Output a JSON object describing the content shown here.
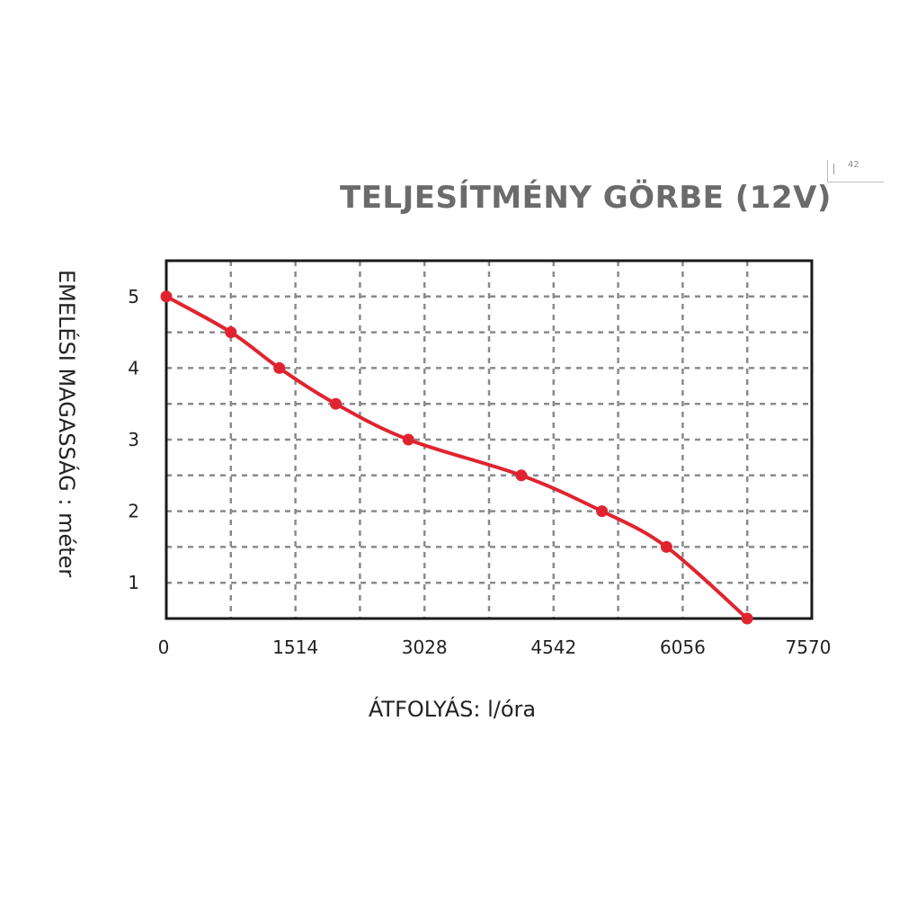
{
  "header": {
    "corner_tag": "42"
  },
  "chart_data": {
    "type": "line",
    "title": "TELJESÍTMÉNY GÖRBE (12V)",
    "xlabel": "ÁTFOLYÁS: l/óra",
    "ylabel": "EMELÉSI MAGASSÁG : méter",
    "x_ticks": [
      "0",
      "1514",
      "3028",
      "4542",
      "6056",
      "7570"
    ],
    "y_ticks": [
      "1",
      "2",
      "3",
      "4",
      "5"
    ],
    "xlim": [
      0,
      7570
    ],
    "ylim": [
      0.5,
      5.5
    ],
    "grid": true,
    "series": [
      {
        "color": "#e0242f",
        "x": [
          0,
          757,
          1325,
          1987,
          2839,
          4163,
          5109,
          5866,
          6812
        ],
        "y": [
          5.0,
          4.5,
          4.0,
          3.5,
          3.0,
          2.5,
          2.0,
          1.5,
          0.5
        ]
      }
    ]
  }
}
